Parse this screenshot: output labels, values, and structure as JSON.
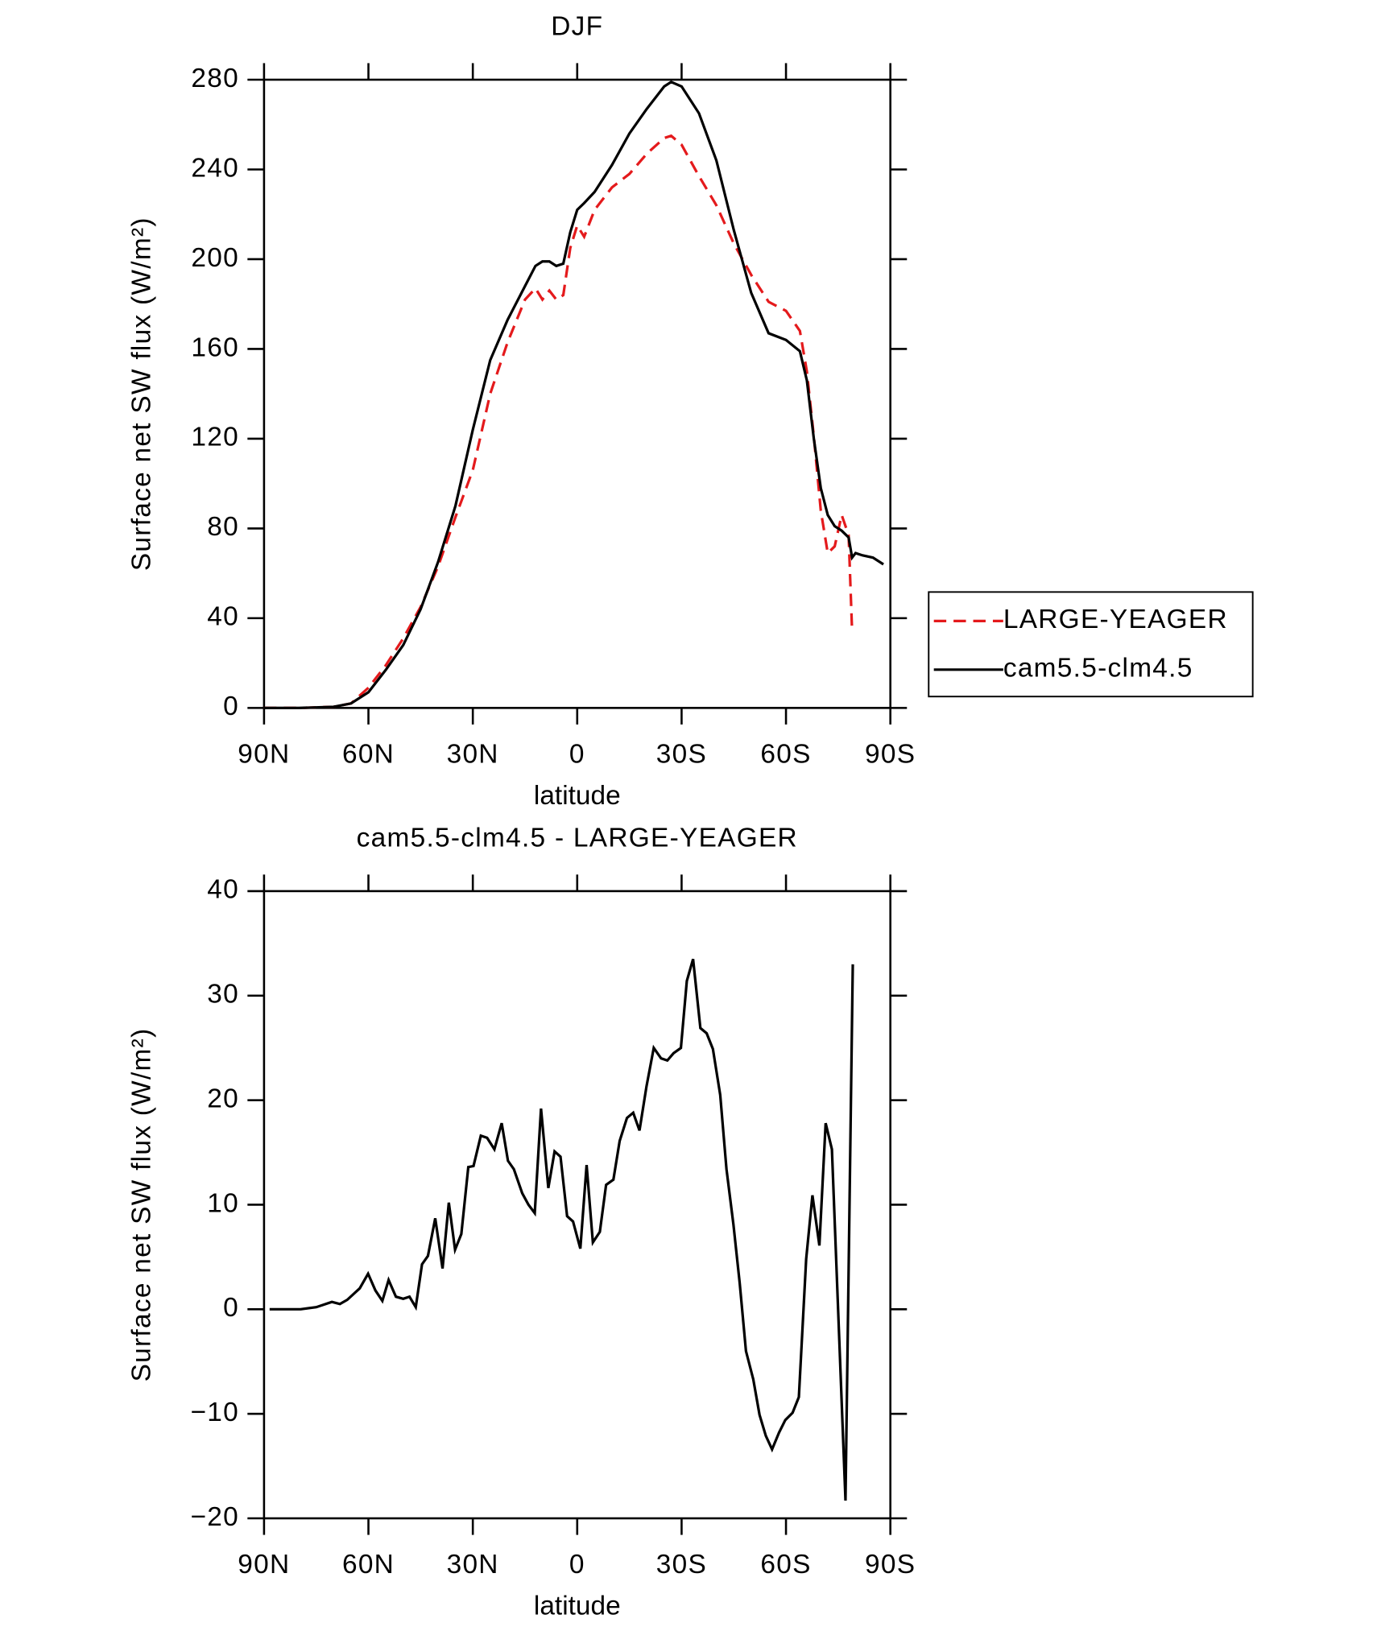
{
  "chart_data": [
    {
      "type": "line",
      "title": "DJF",
      "xlabel": "latitude",
      "ylabel": "Surface net SW flux (W/m²)",
      "x": [
        90,
        80,
        70,
        65,
        60,
        55,
        50,
        45,
        40,
        35,
        30,
        25,
        20,
        15,
        12,
        10,
        8,
        6,
        4,
        2,
        0,
        -2,
        -5,
        -10,
        -15,
        -20,
        -25,
        -27,
        -30,
        -35,
        -40,
        -45,
        -50,
        -55,
        -60,
        -64,
        -66,
        -68,
        -70,
        -72,
        -74,
        -76,
        -78,
        -79,
        -80,
        -82,
        -85,
        -88
      ],
      "series": [
        {
          "name": "LARGE-YEAGER",
          "color": "#e41a1c",
          "line_style": "dashed",
          "values": [
            0,
            0,
            0.5,
            2,
            9,
            19,
            31,
            45,
            63,
            85,
            106,
            140,
            163,
            182,
            187,
            182,
            186,
            182,
            184,
            205,
            215,
            210,
            222,
            232,
            238,
            247,
            254,
            255,
            251,
            237,
            224,
            207,
            193,
            181,
            177,
            168,
            150,
            121,
            88,
            69,
            72,
            86,
            77,
            34,
            null,
            null,
            null,
            null
          ]
        },
        {
          "name": "cam5.5-clm4.5",
          "color": "#000000",
          "line_style": "solid",
          "values": [
            0,
            0,
            0.5,
            2,
            7,
            17,
            28,
            44,
            65,
            90,
            124,
            155,
            173,
            188,
            197,
            199,
            199,
            197,
            198,
            212,
            222,
            225,
            230,
            242,
            256,
            267,
            277,
            279,
            277,
            265,
            244,
            213,
            185,
            167,
            164,
            159,
            146,
            120,
            98,
            86,
            81,
            79,
            76,
            67,
            69,
            68,
            67,
            64
          ]
        }
      ],
      "xlim": [
        90,
        -90
      ],
      "xticks": [
        {
          "value": 90,
          "label": "90N"
        },
        {
          "value": 60,
          "label": "60N"
        },
        {
          "value": 30,
          "label": "30N"
        },
        0,
        {
          "value": -30,
          "label": "30S"
        },
        {
          "value": -60,
          "label": "60S"
        },
        {
          "value": -90,
          "label": "90S"
        }
      ],
      "ylim": [
        0,
        280
      ],
      "yticks": [
        0,
        40,
        80,
        120,
        160,
        200,
        240,
        280
      ],
      "legend": "right"
    },
    {
      "type": "line",
      "title": "cam5.5-clm4.5 - LARGE-YEAGER",
      "xlabel": "latitude",
      "ylabel": "Surface net SW flux (W/m²)",
      "x": [
        88.4,
        79.5,
        75,
        70.5,
        68.2,
        66.1,
        62.5,
        60.1,
        58,
        56,
        54.2,
        52.1,
        50,
        48.2,
        46.4,
        44.6,
        42.9,
        40.8,
        38.7,
        36.9,
        35.1,
        33.3,
        31.3,
        29.8,
        27.7,
        25.9,
        23.8,
        21.7,
        19.9,
        18.2,
        15.8,
        14,
        12.2,
        10.4,
        8.3,
        6.5,
        4.8,
        2.9,
        1.2,
        -0.9,
        -2.7,
        -4.5,
        -6.5,
        -8.3,
        -10.4,
        -12.2,
        -14.3,
        -16.1,
        -17.9,
        -19.9,
        -22,
        -24.1,
        -25.9,
        -27.7,
        -29.8,
        -31.5,
        -33.3,
        -35.4,
        -37.2,
        -39,
        -41.1,
        -42.9,
        -44.9,
        -46.7,
        -48.5,
        -50.6,
        -52.4,
        -54.2,
        -56,
        -58,
        -59.8,
        -61.9,
        -63.7,
        -65.8,
        -67.6,
        -69.6,
        -71.4,
        -73.2,
        -77.1,
        -79.2
      ],
      "values": [
        0,
        0,
        0.2,
        0.7,
        0.5,
        0.9,
        2,
        3.4,
        1.8,
        0.8,
        2.8,
        1.2,
        1,
        1.2,
        0.2,
        4.3,
        5.1,
        8.7,
        3.9,
        10.2,
        5.7,
        7.2,
        13.6,
        13.7,
        16.6,
        16.4,
        15.3,
        17.8,
        14.2,
        13.4,
        11.1,
        10,
        9.2,
        19.2,
        11.6,
        15.1,
        14.6,
        8.9,
        8.4,
        5.8,
        13.8,
        6.4,
        7.4,
        11.9,
        12.4,
        16.1,
        18.3,
        18.8,
        17.1,
        21.3,
        25,
        24,
        23.8,
        24.5,
        25,
        31.4,
        33.5,
        26.9,
        26.4,
        24.9,
        20.5,
        13.4,
        8.1,
        2.5,
        -4,
        -6.7,
        -10.1,
        -12.1,
        -13.4,
        -11.8,
        -10.6,
        -9.9,
        -8.4,
        4.8,
        10.9,
        6.1,
        17.8,
        15.3,
        -18.3,
        33
      ],
      "color": "#000000",
      "xlim": [
        90,
        -90
      ],
      "xticks": [
        {
          "value": 90,
          "label": "90N"
        },
        {
          "value": 60,
          "label": "60N"
        },
        {
          "value": 30,
          "label": "30N"
        },
        0,
        {
          "value": -30,
          "label": "30S"
        },
        {
          "value": -60,
          "label": "60S"
        },
        {
          "value": -90,
          "label": "90S"
        }
      ],
      "ylim": [
        -20,
        40
      ],
      "yticks": [
        {
          "value": -20,
          "label": "−20"
        },
        {
          "value": -10,
          "label": "−10"
        },
        0,
        10,
        20,
        30,
        40
      ]
    }
  ]
}
